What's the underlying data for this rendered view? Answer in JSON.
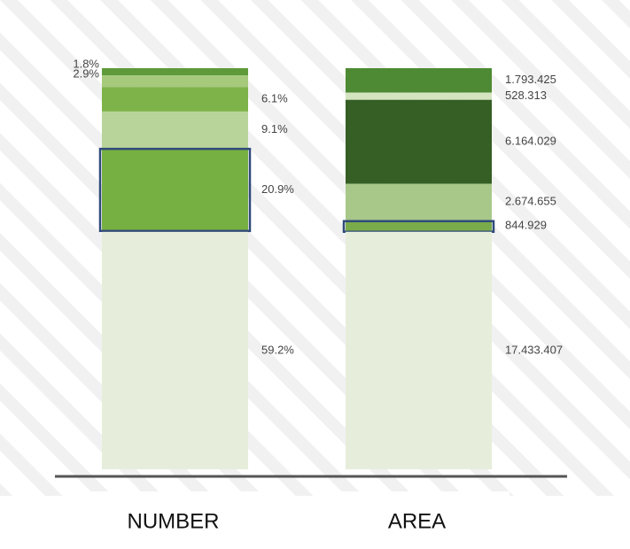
{
  "chart_data": {
    "type": "stacked-bar",
    "bars": [
      {
        "name": "NUMBER",
        "values": [
          1.8,
          2.9,
          6.1,
          9.1,
          20.9,
          59.2
        ],
        "value_labels": [
          "1.8%",
          "2.9%",
          "6.1%",
          "9.1%",
          "20.9%",
          "59.2%"
        ],
        "colors": [
          "#5e9a3a",
          "#a6c97c",
          "#7db348",
          "#b9d49a",
          "#76b043",
          "#e6eedb"
        ],
        "highlight": 4
      },
      {
        "name": "AREA",
        "values": [
          1793425,
          528313,
          6164029,
          2674655,
          844929,
          17433407
        ],
        "value_labels": [
          "1.793.425",
          "528.313",
          "6.164.029",
          "2.674.655",
          "844.929",
          "17.433.407"
        ],
        "colors": [
          "#4e8a34",
          "#d5e4c0",
          "#355f25",
          "#a8c88a",
          "#7aab4a",
          "#e6eedb"
        ],
        "highlight": 4
      }
    ]
  }
}
